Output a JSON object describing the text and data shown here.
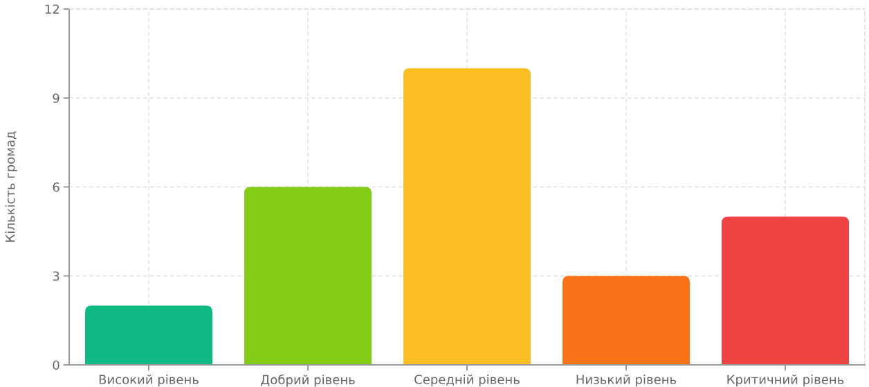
{
  "chart_data": {
    "type": "bar",
    "ylabel": "Кількість громад",
    "categories": [
      "Високий рівень",
      "Добрий рівень",
      "Середній рівень",
      "Низький рівень",
      "Критичний рівень"
    ],
    "values": [
      2,
      6,
      10,
      3,
      5
    ],
    "colors": [
      "#10b981",
      "#84cc16",
      "#fbbf24",
      "#f97316",
      "#ef4444"
    ],
    "ylim": [
      0,
      12
    ],
    "yticks": [
      0,
      3,
      6,
      9,
      12
    ],
    "grid": true,
    "legend": false
  }
}
